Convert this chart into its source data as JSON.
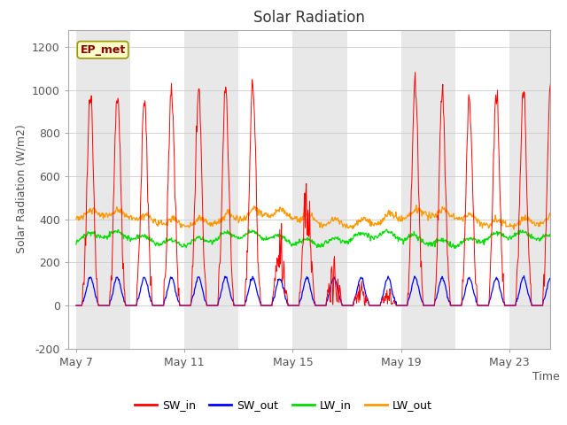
{
  "title": "Solar Radiation",
  "ylabel": "Solar Radiation (W/m2)",
  "xlabel": "Time",
  "ylim": [
    -200,
    1280
  ],
  "yticks": [
    -200,
    0,
    200,
    400,
    600,
    800,
    1000,
    1200
  ],
  "colors": {
    "SW_in": "#ff0000",
    "SW_out": "#0000ff",
    "LW_in": "#00dd00",
    "LW_out": "#ff9900"
  },
  "label_box": "EP_met",
  "background_color": "#ffffff",
  "plot_bg": "#ffffff",
  "band_color": "#e8e8e8",
  "xtick_labels": [
    "May 7",
    "May 11",
    "May 15",
    "May 19",
    "May 23"
  ],
  "xtick_days": [
    0,
    4,
    8,
    12,
    16
  ]
}
